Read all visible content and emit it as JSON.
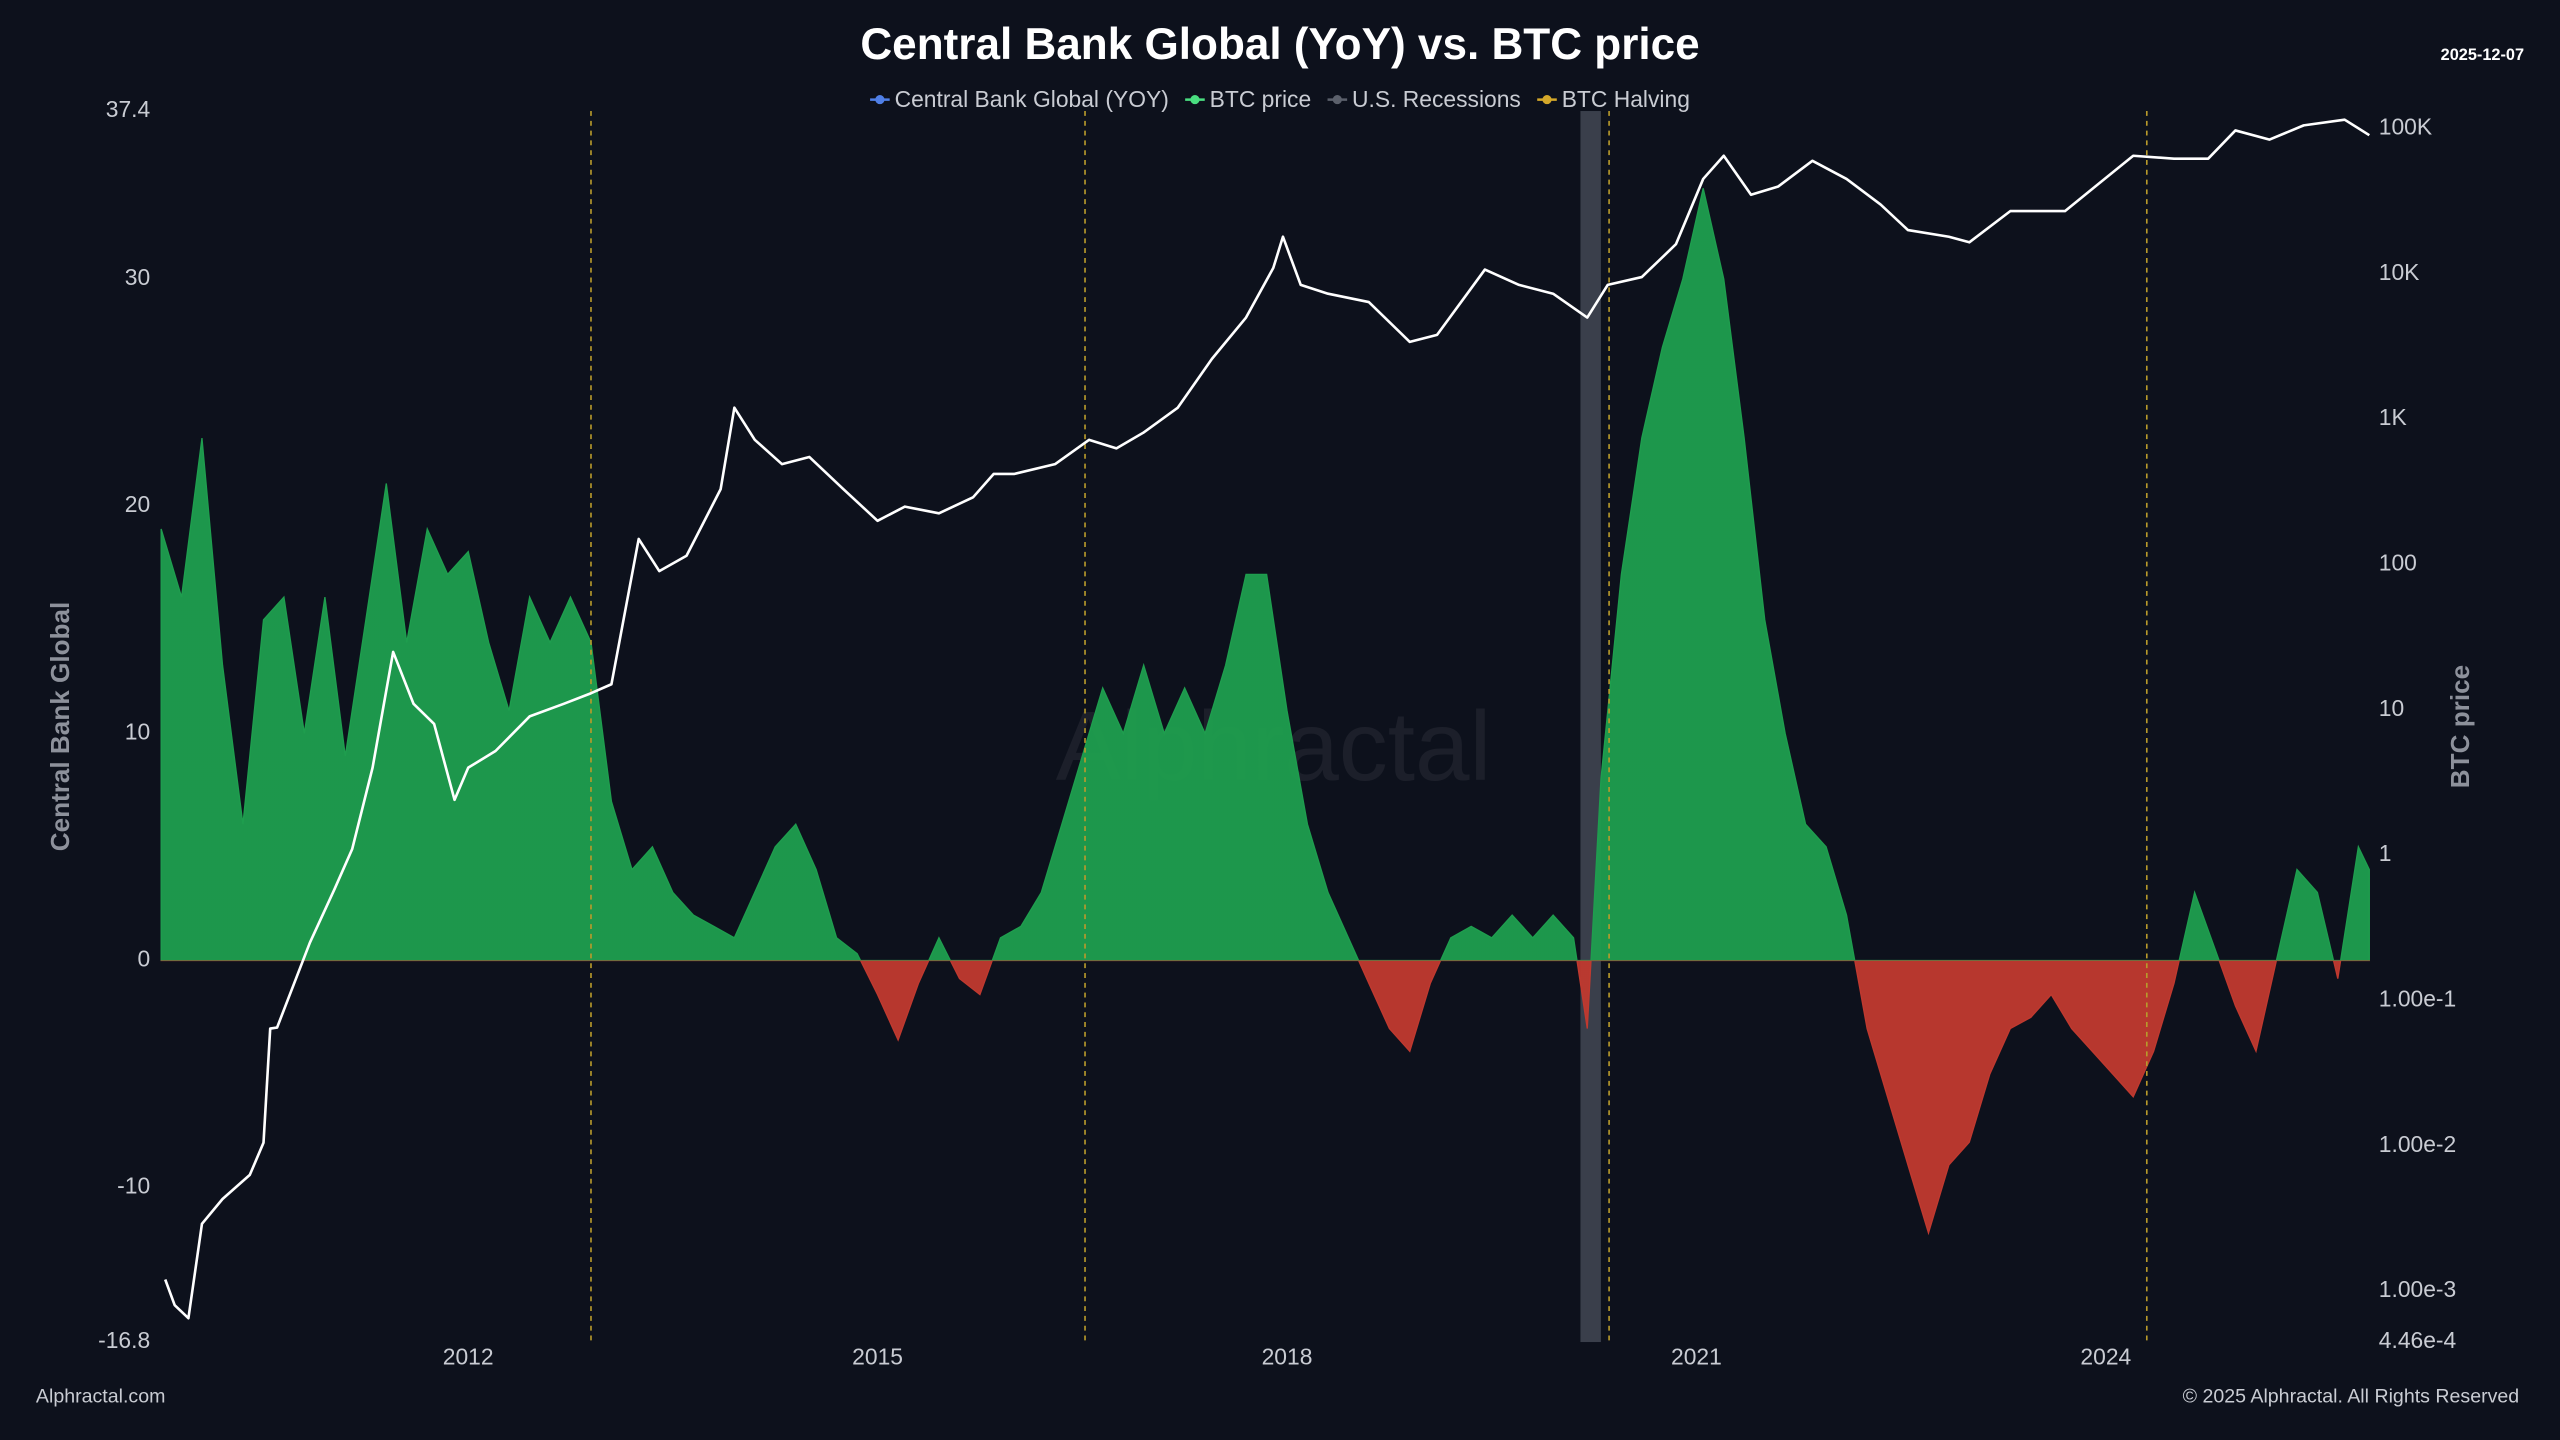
{
  "chart_data": {
    "type": "area-line",
    "title": "Central Bank Global (YoY) vs. BTC price",
    "date": "2025-12-07",
    "watermark": "Alphractal",
    "source": "Alphractal.com",
    "copyright": "© 2025 Alphractal. All Rights Reserved",
    "y_label": "Central Bank Global",
    "y2_label": "BTC price",
    "xlim": [
      2009.73,
      2025.94
    ],
    "xticks": [
      2012,
      2015,
      2018,
      2021,
      2024
    ],
    "ylim": [
      -16.8,
      37.4
    ],
    "yticks": [
      -16.8,
      -10,
      0,
      10,
      20,
      30,
      37.4
    ],
    "y2lim": [
      0.000446,
      132000
    ],
    "y2_log": true,
    "y2ticks": [
      {
        "value": 0.000446,
        "label": "4.46e-4"
      },
      {
        "value": 0.001,
        "label": "1.00e-3"
      },
      {
        "value": 0.01,
        "label": "1.00e-2"
      },
      {
        "value": 0.1,
        "label": "1.00e-1"
      },
      1,
      10,
      100,
      {
        "value": 1000,
        "label": "1K"
      },
      {
        "value": 10000,
        "label": "10K"
      },
      {
        "value": 100000,
        "label": "100K"
      }
    ],
    "grid": false,
    "series": [
      {
        "name": "Central Bank Global (YOY)",
        "legend_color": "#4f7fe6",
        "positive_color": "#1e9e4e",
        "negative_color": "#c0392f",
        "x": [
          2009.75,
          2009.9,
          2010.05,
          2010.2,
          2010.35,
          2010.5,
          2010.65,
          2010.8,
          2010.95,
          2011.1,
          2011.25,
          2011.4,
          2011.55,
          2011.7,
          2011.85,
          2012.0,
          2012.15,
          2012.3,
          2012.45,
          2012.6,
          2012.75,
          2012.9,
          2013.05,
          2013.2,
          2013.35,
          2013.5,
          2013.65,
          2013.8,
          2013.95,
          2014.1,
          2014.25,
          2014.4,
          2014.55,
          2014.7,
          2014.85,
          2015.0,
          2015.15,
          2015.3,
          2015.45,
          2015.6,
          2015.75,
          2015.9,
          2016.05,
          2016.2,
          2016.35,
          2016.5,
          2016.65,
          2016.8,
          2016.95,
          2017.1,
          2017.25,
          2017.4,
          2017.55,
          2017.7,
          2017.85,
          2018.0,
          2018.15,
          2018.3,
          2018.45,
          2018.6,
          2018.75,
          2018.9,
          2019.05,
          2019.2,
          2019.35,
          2019.5,
          2019.65,
          2019.8,
          2019.95,
          2020.1,
          2020.2,
          2020.3,
          2020.45,
          2020.6,
          2020.75,
          2020.9,
          2021.05,
          2021.2,
          2021.35,
          2021.5,
          2021.65,
          2021.8,
          2021.95,
          2022.1,
          2022.25,
          2022.4,
          2022.55,
          2022.7,
          2022.85,
          2023.0,
          2023.15,
          2023.3,
          2023.45,
          2023.6,
          2023.75,
          2023.9,
          2024.05,
          2024.2,
          2024.35,
          2024.5,
          2024.65,
          2024.8,
          2024.95,
          2025.1,
          2025.25,
          2025.4,
          2025.55,
          2025.7,
          2025.85,
          2025.93
        ],
        "values": [
          19,
          16,
          23,
          13,
          6,
          15,
          16,
          10,
          16,
          9,
          15,
          21,
          14,
          19,
          17,
          18,
          14,
          11,
          16,
          14,
          16,
          14,
          7,
          4,
          5,
          3,
          2,
          1.5,
          1,
          3,
          5,
          6,
          4,
          1,
          0.3,
          -1.5,
          -3.5,
          -1,
          1,
          -0.8,
          -1.5,
          1,
          1.5,
          3,
          6,
          9,
          12,
          10,
          13,
          10,
          12,
          10,
          13,
          17,
          17,
          11,
          6,
          3,
          1,
          -1,
          -3,
          -4,
          -1,
          1,
          1.5,
          1,
          2,
          1,
          2,
          1,
          -3,
          8,
          17,
          23,
          27,
          30,
          34,
          30,
          23,
          15,
          10,
          6,
          5,
          2,
          -3,
          -6,
          -9,
          -12,
          -9,
          -8,
          -5,
          -3,
          -2.5,
          -1.5,
          -3,
          -4,
          -5,
          -6,
          -4,
          -1,
          3,
          0.5,
          -2,
          -4,
          0,
          4,
          3,
          -0.8,
          5,
          4
        ]
      },
      {
        "name": "BTC price",
        "axis": "y2",
        "color": "#ffffff",
        "legend_color": "#4ade80",
        "x": [
          2009.78,
          2009.85,
          2009.95,
          2010.05,
          2010.2,
          2010.4,
          2010.5,
          2010.55,
          2010.6,
          2010.84,
          2011.02,
          2011.15,
          2011.3,
          2011.45,
          2011.6,
          2011.75,
          2011.9,
          2012.0,
          2012.2,
          2012.45,
          2012.7,
          2012.9,
          2013.05,
          2013.25,
          2013.4,
          2013.6,
          2013.85,
          2013.95,
          2014.1,
          2014.3,
          2014.5,
          2014.75,
          2015.0,
          2015.2,
          2015.45,
          2015.7,
          2015.85,
          2016.0,
          2016.3,
          2016.55,
          2016.75,
          2016.95,
          2017.2,
          2017.45,
          2017.7,
          2017.9,
          2017.97,
          2018.1,
          2018.3,
          2018.6,
          2018.9,
          2019.1,
          2019.45,
          2019.7,
          2019.95,
          2020.2,
          2020.35,
          2020.6,
          2020.85,
          2021.05,
          2021.2,
          2021.4,
          2021.6,
          2021.85,
          2022.1,
          2022.35,
          2022.55,
          2022.85,
          2023.0,
          2023.3,
          2023.7,
          2023.95,
          2024.2,
          2024.5,
          2024.75,
          2024.95,
          2025.2,
          2025.45,
          2025.75,
          2025.93
        ],
        "values": [
          0.0012,
          0.0008,
          0.00065,
          0.0029,
          0.0043,
          0.0063,
          0.0105,
          0.064,
          0.065,
          0.25,
          0.58,
          1.1,
          4,
          25,
          11,
          8,
          2.4,
          4,
          5.2,
          9,
          11,
          13,
          15,
          150,
          90,
          115,
          330,
          1200,
          720,
          490,
          550,
          330,
          200,
          250,
          225,
          290,
          420,
          420,
          490,
          720,
          630,
          810,
          1200,
          2600,
          5000,
          11000,
          18000,
          8400,
          7300,
          6400,
          3400,
          3800,
          10700,
          8400,
          7300,
          5000,
          8400,
          9500,
          16000,
          45000,
          65000,
          35000,
          40000,
          60000,
          45000,
          30000,
          20000,
          18000,
          16500,
          27000,
          27000,
          42000,
          65000,
          62000,
          62000,
          97000,
          84000,
          105000,
          115000,
          90000
        ]
      }
    ],
    "recessions": {
      "name": "U.S. Recessions",
      "color": "#3a3f4b",
      "legend_color": "#5b606b",
      "ranges": [
        [
          2020.15,
          2020.3
        ]
      ]
    },
    "halvings": {
      "name": "BTC Halving",
      "color": "#b89a2b",
      "legend_color": "#d4a82a",
      "dates": [
        2012.9,
        2016.52,
        2020.36,
        2024.3
      ]
    }
  }
}
